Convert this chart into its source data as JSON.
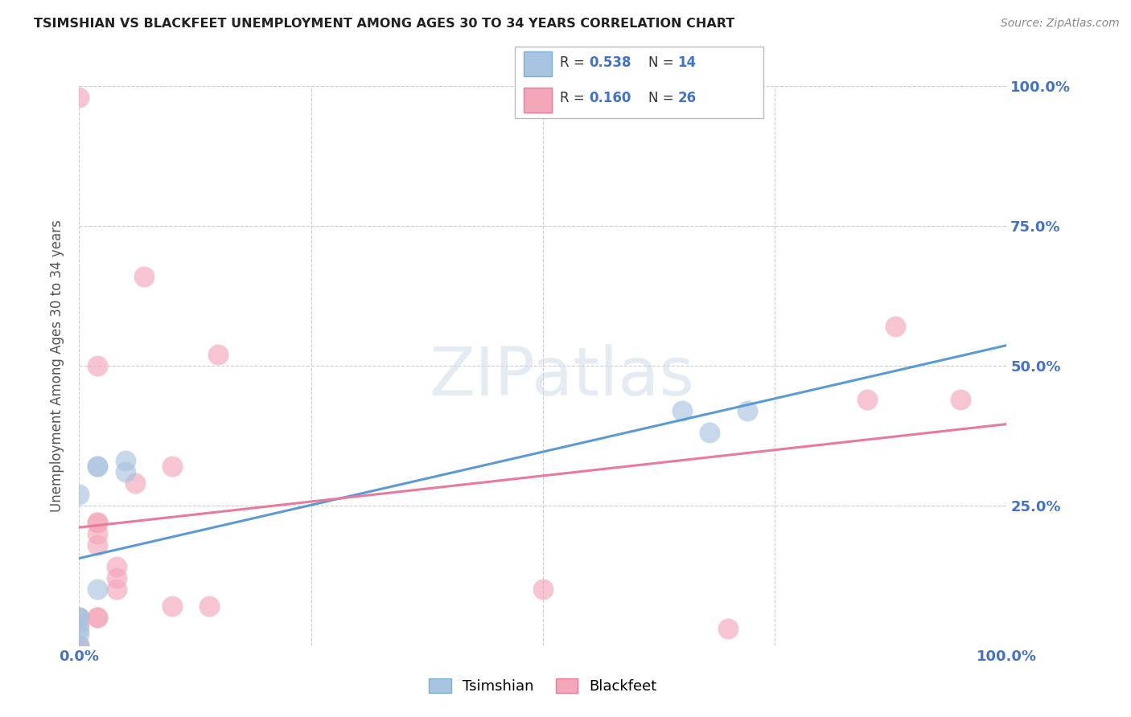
{
  "title": "TSIMSHIAN VS BLACKFEET UNEMPLOYMENT AMONG AGES 30 TO 34 YEARS CORRELATION CHART",
  "source": "Source: ZipAtlas.com",
  "ylabel": "Unemployment Among Ages 30 to 34 years",
  "xlim": [
    0,
    1.0
  ],
  "ylim": [
    0,
    1.0
  ],
  "xtick_vals": [
    0.0,
    0.25,
    0.5,
    0.75,
    1.0
  ],
  "ytick_vals": [
    0.0,
    0.25,
    0.5,
    0.75,
    1.0
  ],
  "xtick_labels": [
    "0.0%",
    "",
    "",
    "",
    "100.0%"
  ],
  "ytick_labels": [
    "",
    "25.0%",
    "50.0%",
    "75.0%",
    "100.0%"
  ],
  "tsimshian_color": "#a8c4e0",
  "tsimshian_edge_color": "#7aafd4",
  "blackfeet_color": "#f4a7b9",
  "blackfeet_edge_color": "#e87a9a",
  "tsimshian_line_color": "#5b9bd5",
  "blackfeet_line_color": "#e87a9a",
  "R_tsimshian": 0.538,
  "N_tsimshian": 14,
  "R_blackfeet": 0.16,
  "N_blackfeet": 26,
  "tsimshian_x": [
    0.0,
    0.0,
    0.0,
    0.0,
    0.0,
    0.0,
    0.02,
    0.02,
    0.02,
    0.05,
    0.05,
    0.65,
    0.68,
    0.72
  ],
  "tsimshian_y": [
    0.0,
    0.02,
    0.03,
    0.05,
    0.05,
    0.27,
    0.1,
    0.32,
    0.32,
    0.31,
    0.33,
    0.42,
    0.38,
    0.42
  ],
  "blackfeet_x": [
    0.0,
    0.0,
    0.0,
    0.0,
    0.0,
    0.02,
    0.02,
    0.02,
    0.02,
    0.02,
    0.02,
    0.02,
    0.04,
    0.04,
    0.04,
    0.06,
    0.07,
    0.1,
    0.1,
    0.14,
    0.15,
    0.5,
    0.7,
    0.85,
    0.88,
    0.95
  ],
  "blackfeet_y": [
    0.0,
    0.0,
    0.04,
    0.05,
    0.98,
    0.05,
    0.05,
    0.18,
    0.2,
    0.22,
    0.22,
    0.5,
    0.1,
    0.12,
    0.14,
    0.29,
    0.66,
    0.07,
    0.32,
    0.07,
    0.52,
    0.1,
    0.03,
    0.44,
    0.57,
    0.44
  ],
  "background_color": "#ffffff",
  "grid_color": "#cccccc",
  "title_color": "#222222",
  "axis_label_color": "#555555",
  "tick_color": "#4472c4",
  "legend_box_color": "#4472c4",
  "watermark_text": "ZIPatlas",
  "scatter_size": 350,
  "scatter_alpha": 0.65
}
